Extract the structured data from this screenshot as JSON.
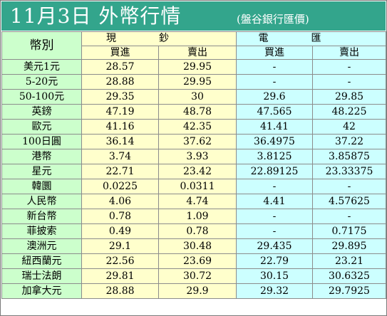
{
  "title": "11月3日 外幣行情",
  "subtitle": "(盤谷銀行匯價)",
  "headers": {
    "currency": "幣別",
    "cash": "現鈔",
    "tt": "電匯",
    "buy": "買進",
    "sell": "賣出"
  },
  "colors": {
    "header_bg": "#33a58c",
    "currency_col_bg": "#ccffcc",
    "cash_bg": "#ffffcc",
    "tt_bg": "#ccffff"
  },
  "rows": [
    {
      "name": "美元1元",
      "cash_buy": "28.57",
      "cash_sell": "29.95",
      "tt_buy": "-",
      "tt_sell": "-"
    },
    {
      "name": "5-20元",
      "cash_buy": "28.88",
      "cash_sell": "29.95",
      "tt_buy": "-",
      "tt_sell": "-"
    },
    {
      "name": "50-100元",
      "cash_buy": "29.35",
      "cash_sell": "30",
      "tt_buy": "29.6",
      "tt_sell": "29.85"
    },
    {
      "name": "英鎊",
      "cash_buy": "47.19",
      "cash_sell": "48.78",
      "tt_buy": "47.565",
      "tt_sell": "48.225"
    },
    {
      "name": "歐元",
      "cash_buy": "41.16",
      "cash_sell": "42.35",
      "tt_buy": "41.41",
      "tt_sell": "42"
    },
    {
      "name": "100日圓",
      "cash_buy": "36.14",
      "cash_sell": "37.62",
      "tt_buy": "36.4975",
      "tt_sell": "37.22"
    },
    {
      "name": "港幣",
      "cash_buy": "3.74",
      "cash_sell": "3.93",
      "tt_buy": "3.8125",
      "tt_sell": "3.85875"
    },
    {
      "name": "星元",
      "cash_buy": "22.71",
      "cash_sell": "23.42",
      "tt_buy": "22.89125",
      "tt_sell": "23.33375"
    },
    {
      "name": "韓圜",
      "cash_buy": "0.0225",
      "cash_sell": "0.0311",
      "tt_buy": "-",
      "tt_sell": "-"
    },
    {
      "name": "人民幣",
      "cash_buy": "4.06",
      "cash_sell": "4.74",
      "tt_buy": "4.41",
      "tt_sell": "4.57625"
    },
    {
      "name": "新台幣",
      "cash_buy": "0.78",
      "cash_sell": "1.09",
      "tt_buy": "-",
      "tt_sell": "-"
    },
    {
      "name": "菲披索",
      "cash_buy": "0.49",
      "cash_sell": "0.78",
      "tt_buy": "-",
      "tt_sell": "0.7175"
    },
    {
      "name": "澳洲元",
      "cash_buy": "29.1",
      "cash_sell": "30.48",
      "tt_buy": "29.435",
      "tt_sell": "29.895"
    },
    {
      "name": "紐西蘭元",
      "cash_buy": "22.56",
      "cash_sell": "23.69",
      "tt_buy": "22.79",
      "tt_sell": "23.21"
    },
    {
      "name": "瑞士法朗",
      "cash_buy": "29.81",
      "cash_sell": "30.72",
      "tt_buy": "30.15",
      "tt_sell": "30.6325"
    },
    {
      "name": "加拿大元",
      "cash_buy": "28.88",
      "cash_sell": "29.9",
      "tt_buy": "29.32",
      "tt_sell": "29.7925"
    }
  ]
}
